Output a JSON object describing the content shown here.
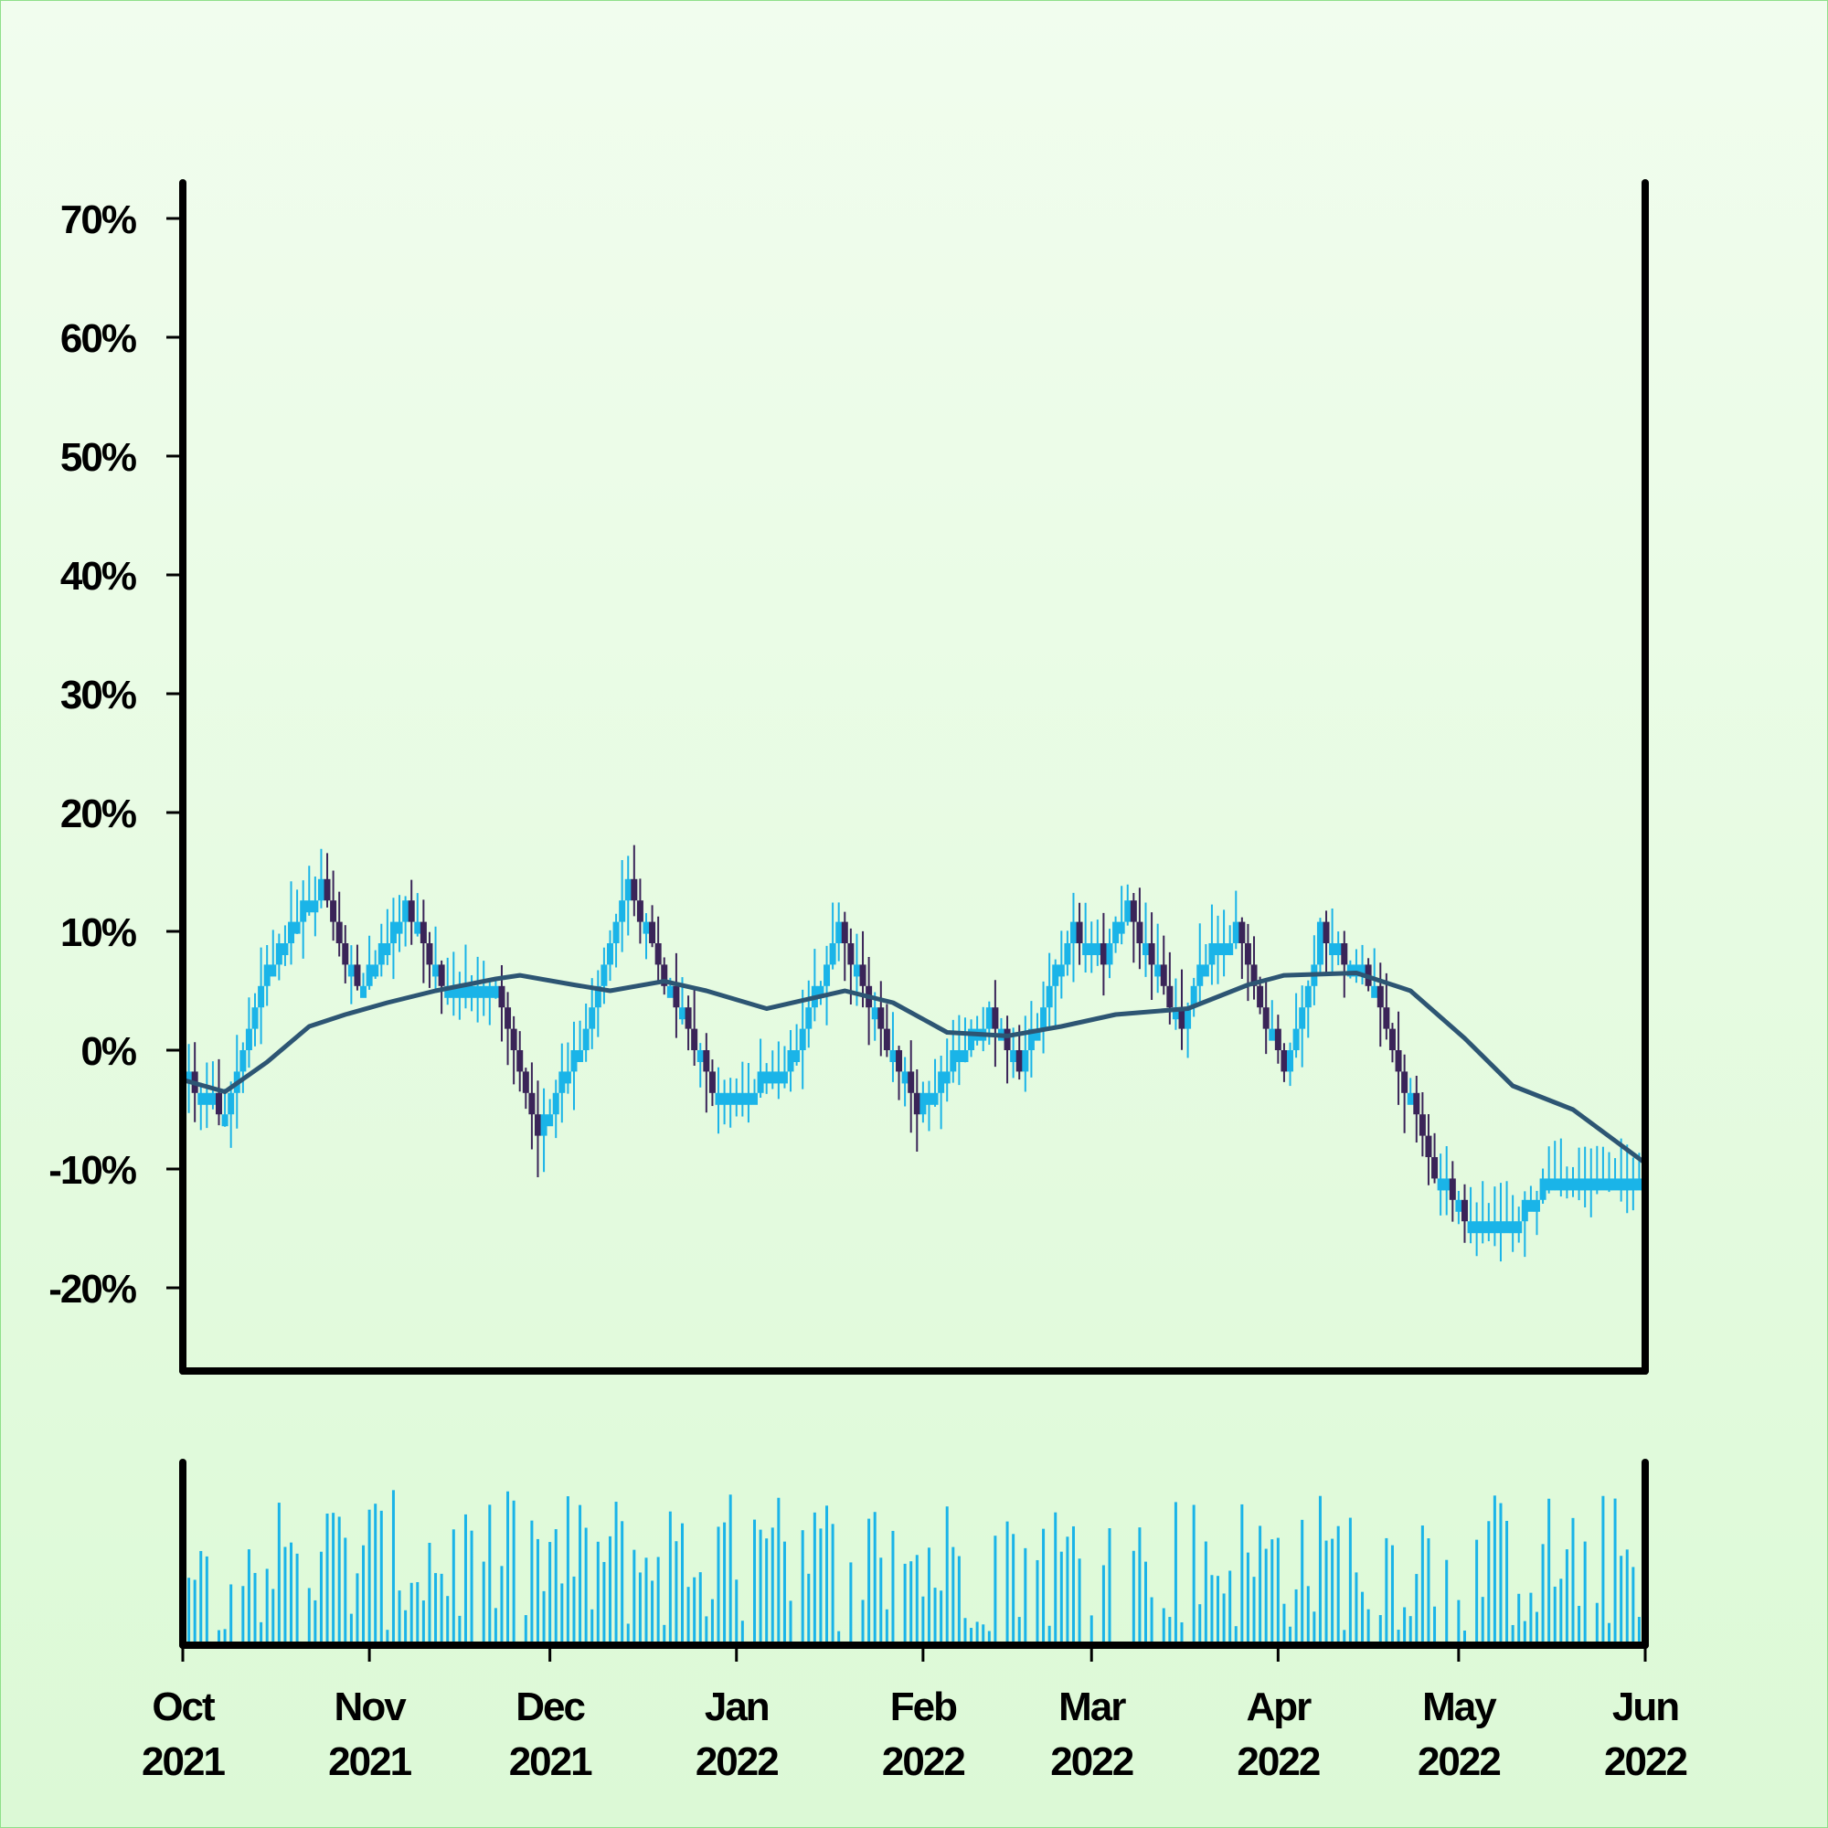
{
  "chart_data": {
    "type": "candlestick",
    "title": "",
    "xlabel": "",
    "ylabel": "",
    "x_range": [
      "2021-10-01",
      "2022-06-01"
    ],
    "ylim": [
      -27,
      73
    ],
    "y_unit": "%",
    "y_ticks": [
      {
        "value": -20,
        "label": "-20%"
      },
      {
        "value": -10,
        "label": "-10%"
      },
      {
        "value": 0,
        "label": "0%"
      },
      {
        "value": 10,
        "label": "10%"
      },
      {
        "value": 20,
        "label": "20%"
      },
      {
        "value": 30,
        "label": "30%"
      },
      {
        "value": 40,
        "label": "40%"
      },
      {
        "value": 50,
        "label": "50%"
      },
      {
        "value": 60,
        "label": "60%"
      },
      {
        "value": 70,
        "label": "70%"
      }
    ],
    "x_ticks": [
      {
        "date": "2021-10-01",
        "month": "Oct",
        "year": "2021"
      },
      {
        "date": "2021-11-01",
        "month": "Nov",
        "year": "2021"
      },
      {
        "date": "2021-12-01",
        "month": "Dec",
        "year": "2021"
      },
      {
        "date": "2022-01-01",
        "month": "Jan",
        "year": "2022"
      },
      {
        "date": "2022-02-01",
        "month": "Feb",
        "year": "2022"
      },
      {
        "date": "2022-03-01",
        "month": "Mar",
        "year": "2022"
      },
      {
        "date": "2022-04-01",
        "month": "Apr",
        "year": "2022"
      },
      {
        "date": "2022-05-01",
        "month": "May",
        "year": "2022"
      },
      {
        "date": "2022-06-01",
        "month": "Jun",
        "year": "2022"
      }
    ],
    "close_path": [
      {
        "date": "2021-10-01",
        "value": -2
      },
      {
        "date": "2021-10-08",
        "value": -5
      },
      {
        "date": "2021-10-16",
        "value": 8
      },
      {
        "date": "2021-10-24",
        "value": 14
      },
      {
        "date": "2021-10-30",
        "value": 5
      },
      {
        "date": "2021-11-07",
        "value": 12
      },
      {
        "date": "2021-11-14",
        "value": 5
      },
      {
        "date": "2021-11-22",
        "value": 5
      },
      {
        "date": "2021-11-29",
        "value": -7
      },
      {
        "date": "2021-12-07",
        "value": 2
      },
      {
        "date": "2021-12-14",
        "value": 14
      },
      {
        "date": "2021-12-21",
        "value": 5
      },
      {
        "date": "2021-12-28",
        "value": -3
      },
      {
        "date": "2022-01-03",
        "value": -3
      },
      {
        "date": "2022-01-09",
        "value": -2
      },
      {
        "date": "2022-01-18",
        "value": 10
      },
      {
        "date": "2022-01-25",
        "value": 2
      },
      {
        "date": "2022-01-31",
        "value": -5
      },
      {
        "date": "2022-02-07",
        "value": 0
      },
      {
        "date": "2022-02-12",
        "value": 3
      },
      {
        "date": "2022-02-17",
        "value": -1
      },
      {
        "date": "2022-02-26",
        "value": 10
      },
      {
        "date": "2022-03-03",
        "value": 8
      },
      {
        "date": "2022-03-07",
        "value": 12
      },
      {
        "date": "2022-03-16",
        "value": 2
      },
      {
        "date": "2022-03-20",
        "value": 8
      },
      {
        "date": "2022-03-25",
        "value": 10
      },
      {
        "date": "2022-04-02",
        "value": -2
      },
      {
        "date": "2022-04-08",
        "value": 10
      },
      {
        "date": "2022-04-16",
        "value": 6
      },
      {
        "date": "2022-04-22",
        "value": -3
      },
      {
        "date": "2022-04-27",
        "value": -10
      },
      {
        "date": "2022-05-03",
        "value": -15
      },
      {
        "date": "2022-05-09",
        "value": -15
      },
      {
        "date": "2022-05-16",
        "value": -11
      },
      {
        "date": "2022-05-25",
        "value": -11
      },
      {
        "date": "2022-06-01",
        "value": -10
      }
    ],
    "moving_average": [
      {
        "date": "2021-10-01",
        "value": -2.5
      },
      {
        "date": "2021-10-08",
        "value": -3.5
      },
      {
        "date": "2021-10-15",
        "value": -1
      },
      {
        "date": "2021-10-22",
        "value": 2
      },
      {
        "date": "2021-10-28",
        "value": 3
      },
      {
        "date": "2021-11-04",
        "value": 4
      },
      {
        "date": "2021-11-12",
        "value": 5
      },
      {
        "date": "2021-11-22",
        "value": 6
      },
      {
        "date": "2021-11-26",
        "value": 6.3
      },
      {
        "date": "2021-12-05",
        "value": 5.5
      },
      {
        "date": "2021-12-11",
        "value": 5
      },
      {
        "date": "2021-12-20",
        "value": 5.8
      },
      {
        "date": "2021-12-27",
        "value": 5
      },
      {
        "date": "2022-01-06",
        "value": 3.5
      },
      {
        "date": "2022-01-19",
        "value": 5
      },
      {
        "date": "2022-01-27",
        "value": 4
      },
      {
        "date": "2022-02-05",
        "value": 1.5
      },
      {
        "date": "2022-02-15",
        "value": 1.2
      },
      {
        "date": "2022-02-24",
        "value": 2
      },
      {
        "date": "2022-03-05",
        "value": 3
      },
      {
        "date": "2022-03-17",
        "value": 3.5
      },
      {
        "date": "2022-03-27",
        "value": 5.5
      },
      {
        "date": "2022-04-02",
        "value": 6.3
      },
      {
        "date": "2022-04-14",
        "value": 6.5
      },
      {
        "date": "2022-04-23",
        "value": 5
      },
      {
        "date": "2022-05-02",
        "value": 1
      },
      {
        "date": "2022-05-10",
        "value": -3
      },
      {
        "date": "2022-05-20",
        "value": -5
      },
      {
        "date": "2022-06-01",
        "value": -9.5
      }
    ],
    "candle_step_pct": 1.8,
    "volume_ylim": [
      0,
      1
    ],
    "colors": {
      "up": "#1ab4e8",
      "down": "#3a2458",
      "moving_average": "#2d5573",
      "volume": "#1ab4e8",
      "axis": "#000000",
      "background_top": "#f1fdee",
      "background_bottom": "#dcf9d6"
    }
  }
}
